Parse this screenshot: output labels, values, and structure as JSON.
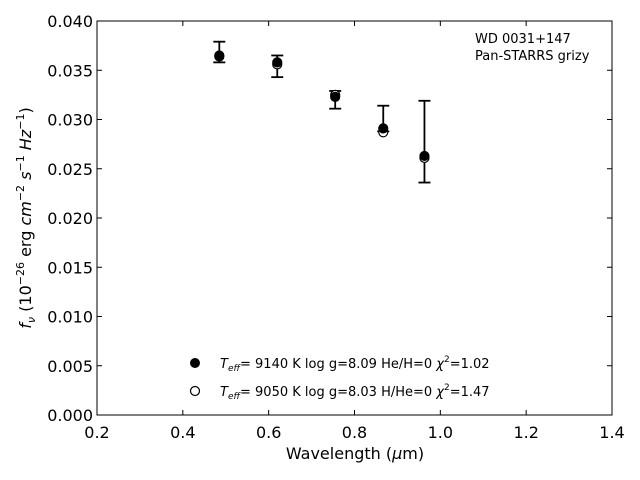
{
  "chart_data": {
    "type": "scatter",
    "xlabel": "Wavelength (μm)",
    "ylabel": "f_ν (10^−26 erg cm^−2 s^−1 Hz^−1)",
    "xlim": [
      0.2,
      1.4
    ],
    "ylim": [
      0.0,
      0.04
    ],
    "xticks": [
      "0.2",
      "0.4",
      "0.6",
      "0.8",
      "1.0",
      "1.2",
      "1.4"
    ],
    "yticks": [
      "0.000",
      "0.005",
      "0.010",
      "0.015",
      "0.020",
      "0.025",
      "0.030",
      "0.035",
      "0.040"
    ],
    "grid": false,
    "annotation": [
      "WD 0031+147",
      "Pan-STARRS grizy"
    ],
    "observed": {
      "x": [
        0.485,
        0.62,
        0.755,
        0.867,
        0.963
      ],
      "y": [
        0.0366,
        0.0357,
        0.0324,
        0.029,
        0.0263
      ],
      "yerr_low": [
        0.0008,
        0.0014,
        0.0013,
        0.0002,
        0.0027
      ],
      "yerr_high": [
        0.0013,
        0.0008,
        0.0005,
        0.0024,
        0.0056
      ]
    },
    "series": [
      {
        "marker": "filled-circle",
        "legend": "T_eff=  9140 K  log g=8.09  He/H=0  χ²=1.02",
        "x": [
          0.485,
          0.62,
          0.755,
          0.867,
          0.963
        ],
        "y": [
          0.0365,
          0.0358,
          0.0323,
          0.0291,
          0.0263
        ]
      },
      {
        "marker": "open-circle",
        "legend": "T_eff=  9050 K  log g=8.03  H/He=0  χ²=1.47",
        "x": [
          0.485,
          0.62,
          0.755,
          0.867,
          0.963
        ],
        "y": [
          0.0364,
          0.0356,
          0.0325,
          0.0287,
          0.0261
        ]
      }
    ]
  }
}
